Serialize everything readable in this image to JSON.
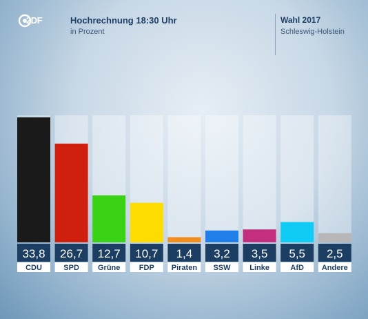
{
  "broadcaster": {
    "logo_text": "2DF"
  },
  "header": {
    "title": "Hochrechnung 18:30 Uhr",
    "subtitle": "in Prozent",
    "election_title": "Wahl 2017",
    "election_region": "Schleswig-Holstein"
  },
  "chart_data": {
    "type": "bar",
    "categories": [
      "CDU",
      "SPD",
      "Grüne",
      "FDP",
      "Piraten",
      "SSW",
      "Linke",
      "AfD",
      "Andere"
    ],
    "values": [
      33.8,
      26.7,
      12.7,
      10.7,
      1.4,
      3.2,
      3.5,
      5.5,
      2.5
    ],
    "value_labels": [
      "33,8",
      "26,7",
      "12,7",
      "10,7",
      "1,4",
      "3,2",
      "3,5",
      "5,5",
      "2,5"
    ],
    "colors": [
      "#1a1a1a",
      "#d0200d",
      "#39d215",
      "#ffdc00",
      "#f28c1c",
      "#1f7ee8",
      "#c42e7e",
      "#10ccf5",
      "#b7b7b7"
    ],
    "title": "Hochrechnung 18:30 Uhr",
    "ylabel": "in Prozent",
    "ylim": [
      0,
      33.8
    ],
    "grid": false,
    "legend": "none"
  }
}
